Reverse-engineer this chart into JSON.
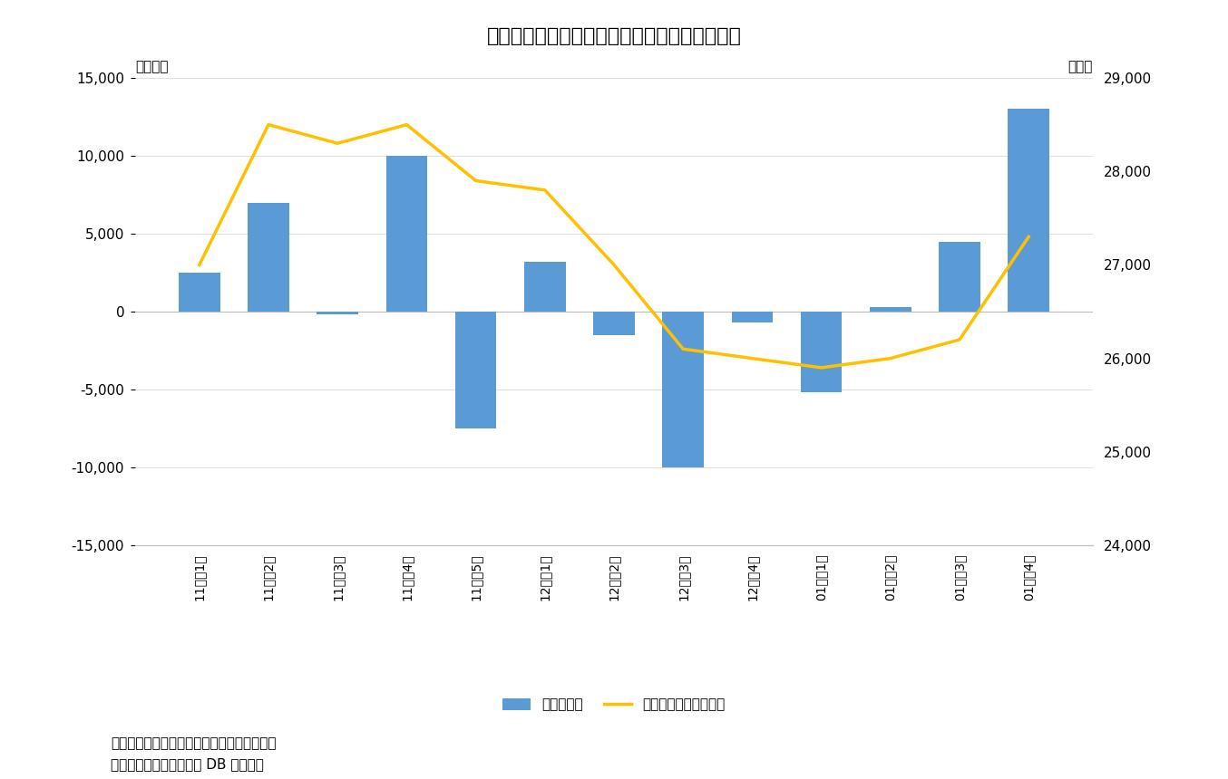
{
  "title": "図表２　海外投賄家は１月後半に大幅買い越し",
  "categories": [
    "11月ㅧ1週",
    "11月ㅧ2週",
    "11月ㅧ3週",
    "11月ㅧ4週",
    "11月ㅧ5週",
    "12月ㅧ1週",
    "12月ㅧ2週",
    "12月ㅧ3週",
    "12月ㅧ4週",
    "01月ㅧ1週",
    "01月ㅧ2週",
    "01月ㅧ3週",
    "01月ㅧ4週"
  ],
  "bar_values": [
    2500,
    7000,
    -200,
    10000,
    -7500,
    3200,
    -1500,
    -10000,
    -700,
    -5200,
    300,
    4500,
    13000
  ],
  "line_values": [
    27000,
    28500,
    28300,
    28500,
    27900,
    27800,
    27000,
    26100,
    26000,
    25900,
    26000,
    26200,
    27300
  ],
  "bar_color": "#5B9BD5",
  "line_color": "#FFC000",
  "ylim_left": [
    -15000,
    15000
  ],
  "ylim_right": [
    24000,
    29000
  ],
  "yticks_left": [
    -15000,
    -10000,
    -5000,
    0,
    5000,
    10000,
    15000
  ],
  "yticks_right": [
    24000,
    25000,
    26000,
    27000,
    28000,
    29000
  ],
  "ylabel_left": "（億円）",
  "ylabel_right": "（円）",
  "legend_bar": "海外投賄家",
  "legend_line": "日経平均株価（右軸）",
  "note1": "（注）海外投賄家の現物と先物の合計、週次",
  "note2": "（資料）ニッセイ基礎研 DB から作成",
  "background_color": "#FFFFFF",
  "grid_color": "#D9D9D9"
}
